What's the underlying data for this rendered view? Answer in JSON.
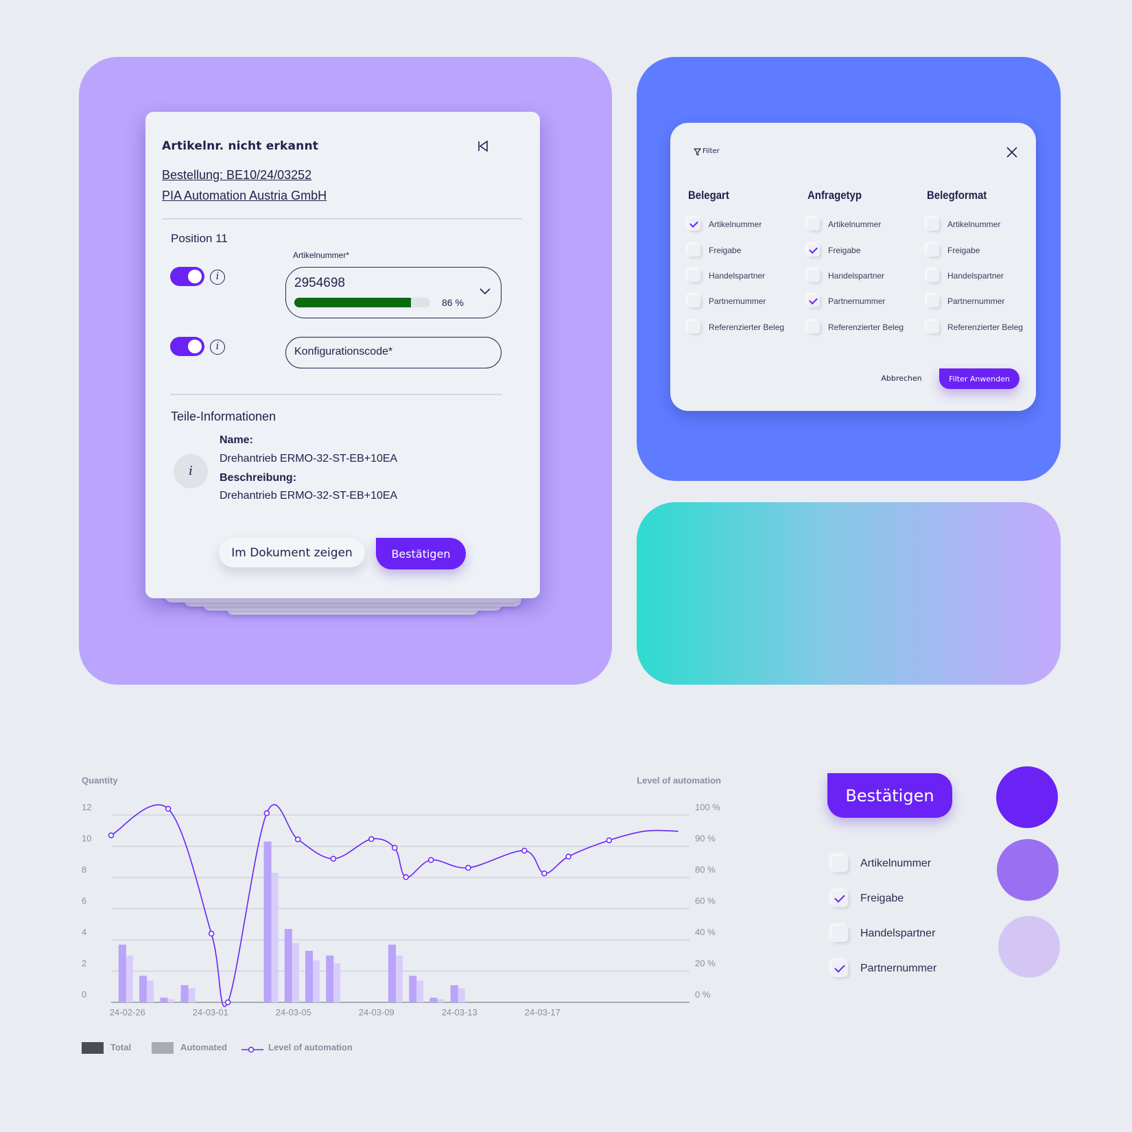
{
  "colors": {
    "accent": "#6a22f5",
    "progress": "#0a6b10",
    "purple_card": "#baa4fd",
    "blue_card": "#5f7bff",
    "bar_total": "#b9a3fb",
    "bar_automated": "#d8cdfa",
    "legend_total": "#4a4d55",
    "legend_automated": "#a8abb0",
    "swatches": [
      "#6a22f5",
      "#9b6ff2",
      "#d3c6f4"
    ]
  },
  "dialog": {
    "title": "Artikelnr. nicht erkannt",
    "order_link": "Bestellung: BE10/24/03252",
    "company_link": "PIA Automation Austria GmbH",
    "position": "Position 11",
    "article_label": "Artikelnummer*",
    "article_value": "2954698",
    "confidence": 86,
    "confidence_label": "86 %",
    "config_placeholder": "Konfigurationscode*",
    "parts_heading": "Teile-Informationen",
    "name_label": "Name:",
    "name_value": "Drehantrieb ERMO-32-ST-EB+10EA",
    "desc_label": "Beschreibung:",
    "desc_value": "Drehantrieb ERMO-32-ST-EB+10EA",
    "show_button": "Im Dokument zeigen",
    "confirm_button": "Bestätigen"
  },
  "filter": {
    "title": "Filter",
    "columns": [
      {
        "heading": "Belegart",
        "items": [
          {
            "label": "Artikelnummer",
            "checked": true
          },
          {
            "label": "Freigabe",
            "checked": false
          },
          {
            "label": "Handelspartner",
            "checked": false
          },
          {
            "label": "Partnernummer",
            "checked": false
          },
          {
            "label": "Referenzierter Beleg",
            "checked": false
          }
        ]
      },
      {
        "heading": "Anfragetyp",
        "items": [
          {
            "label": "Artikelnummer",
            "checked": false
          },
          {
            "label": "Freigabe",
            "checked": true
          },
          {
            "label": "Handelspartner",
            "checked": false
          },
          {
            "label": "Partnernummer",
            "checked": true
          },
          {
            "label": "Referenzierter Beleg",
            "checked": false
          }
        ]
      },
      {
        "heading": "Belegformat",
        "items": [
          {
            "label": "Artikelnummer",
            "checked": false
          },
          {
            "label": "Freigabe",
            "checked": false
          },
          {
            "label": "Handelspartner",
            "checked": false
          },
          {
            "label": "Partnernummer",
            "checked": false
          },
          {
            "label": "Referenzierter Beleg",
            "checked": false
          }
        ]
      }
    ],
    "cancel": "Abbrechen",
    "apply": "Filter Anwenden"
  },
  "components": {
    "confirm_button": "Bestätigen",
    "checklist": [
      {
        "label": "Artikelnummer",
        "checked": false
      },
      {
        "label": "Freigabe",
        "checked": true
      },
      {
        "label": "Handelspartner",
        "checked": false
      },
      {
        "label": "Partnernummer",
        "checked": true
      }
    ]
  },
  "chart_data": {
    "type": "bar+line",
    "ylabel_left": "Quantity",
    "ylabel_right": "Level of automation",
    "y_left_ticks": [
      "0",
      "2",
      "4",
      "6",
      "8",
      "10",
      "12"
    ],
    "y_right_ticks": [
      "0 %",
      "20 %",
      "40 %",
      "60 %",
      "80 %",
      "90 %",
      "100 %"
    ],
    "y_right_tick_values": [
      0,
      20,
      40,
      60,
      80,
      90,
      100
    ],
    "ylim_left": [
      0,
      12
    ],
    "x_tick_labels": [
      "24-02-26",
      "24-03-01",
      "24-03-05",
      "24-03-09",
      "24-03-13",
      "24-03-17"
    ],
    "x_tick_dates": [
      "2024-02-26",
      "2024-03-01",
      "2024-03-05",
      "2024-03-09",
      "2024-03-13",
      "2024-03-17"
    ],
    "xlim": [
      "2024-02-25T13:00",
      "2024-03-24T10:00"
    ],
    "grid": true,
    "legend_position": "bottom-left",
    "legend": [
      "Total",
      "Automated",
      "Level of automation"
    ],
    "bar_dates": [
      "2024-02-26",
      "2024-02-27",
      "2024-02-28",
      "2024-02-29",
      "2024-03-04",
      "2024-03-05",
      "2024-03-06",
      "2024-03-07",
      "2024-03-10",
      "2024-03-11",
      "2024-03-12",
      "2024-03-13"
    ],
    "series": [
      {
        "name": "Total",
        "values": [
          3.7,
          1.7,
          0.3,
          1.1,
          10.3,
          4.7,
          3.3,
          3.0,
          3.7,
          1.7,
          0.3,
          1.1
        ]
      },
      {
        "name": "Automated",
        "values": [
          3.0,
          1.4,
          0.2,
          0.9,
          8.3,
          3.8,
          2.7,
          2.5,
          3.0,
          1.4,
          0.2,
          0.9
        ]
      }
    ],
    "line": {
      "name": "Level of automation",
      "points": [
        {
          "x": "2024-02-25T13:00",
          "y": 93.5,
          "marker": true
        },
        {
          "x": "2024-02-28T07:00",
          "y": 102,
          "marker": true
        },
        {
          "x": "2024-03-01T09:00",
          "y": 44,
          "marker": true
        },
        {
          "x": "2024-03-02T04:00",
          "y": 0,
          "marker": true
        },
        {
          "x": "2024-03-04T01:00",
          "y": 100.6,
          "marker": true
        },
        {
          "x": "2024-03-05T13:00",
          "y": 92.2,
          "marker": true
        },
        {
          "x": "2024-03-07T06:00",
          "y": 86,
          "marker": true
        },
        {
          "x": "2024-03-09T02:00",
          "y": 92.3,
          "marker": true
        },
        {
          "x": "2024-03-10T05:00",
          "y": 89.5,
          "marker": true
        },
        {
          "x": "2024-03-10T18:00",
          "y": 80.1,
          "marker": true
        },
        {
          "x": "2024-03-11T23:00",
          "y": 85.6,
          "marker": true
        },
        {
          "x": "2024-03-13T18:00",
          "y": 83.1,
          "marker": true
        },
        {
          "x": "2024-03-16T11:00",
          "y": 88.6,
          "marker": true
        },
        {
          "x": "2024-03-17T10:00",
          "y": 81.3,
          "marker": true
        },
        {
          "x": "2024-03-18T14:00",
          "y": 86.7,
          "marker": true
        },
        {
          "x": "2024-03-20T13:00",
          "y": 91.9,
          "marker": true
        },
        {
          "x": "2024-03-22T08:00",
          "y": 94.9,
          "marker": false
        },
        {
          "x": "2024-03-23T21:00",
          "y": 94.8,
          "marker": false
        }
      ]
    }
  }
}
